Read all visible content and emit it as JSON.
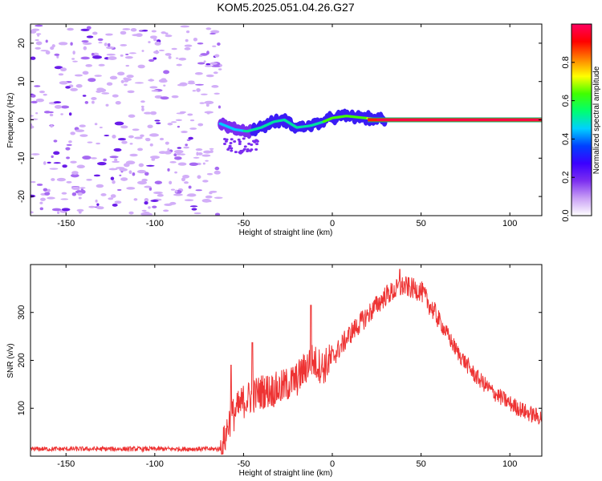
{
  "title": "KOM5.2025.051.04.26.G27",
  "chart_data": [
    {
      "type": "heatmap",
      "name": "spectrogram",
      "xlabel": "Height of straight line (km)",
      "ylabel": "Frequency (Hz)",
      "xlim": [
        -170,
        118
      ],
      "ylim": [
        -25,
        25
      ],
      "xticks": [
        -150,
        -100,
        -50,
        0,
        50,
        100
      ],
      "yticks": [
        -20,
        -10,
        0,
        10,
        20
      ],
      "signal_onset_km": -63,
      "signal_track": [
        {
          "x": -63,
          "y": -1.0
        },
        {
          "x": -55,
          "y": -2.5
        },
        {
          "x": -48,
          "y": -3.0
        },
        {
          "x": -40,
          "y": -2.0
        },
        {
          "x": -33,
          "y": -0.5
        },
        {
          "x": -27,
          "y": 0.0
        },
        {
          "x": -20,
          "y": -2.0
        },
        {
          "x": -12,
          "y": -1.5
        },
        {
          "x": -5,
          "y": -0.5
        },
        {
          "x": 0,
          "y": 0.5
        },
        {
          "x": 8,
          "y": 1.0
        },
        {
          "x": 18,
          "y": 0.5
        },
        {
          "x": 30,
          "y": 0.0
        },
        {
          "x": 118,
          "y": 0.0
        }
      ],
      "colorbar": {
        "label": "Normalized spectral amplitude",
        "range": [
          0,
          1
        ],
        "ticks": [
          0.0,
          0.2,
          0.4,
          0.6,
          0.8
        ],
        "colors": [
          "#ffffff",
          "#c9a0f5",
          "#7c2ff0",
          "#3b00ff",
          "#0040ff",
          "#00d0ff",
          "#00ff70",
          "#40ff00",
          "#ffff00",
          "#ff8000",
          "#ff0000",
          "#ff0060"
        ]
      }
    },
    {
      "type": "line",
      "name": "snr",
      "xlabel": "Height of straight line (km)",
      "ylabel": "SNR (v/v)",
      "xlim": [
        -170,
        118
      ],
      "ylim": [
        0,
        400
      ],
      "xticks": [
        -150,
        -100,
        -50,
        0,
        50,
        100
      ],
      "yticks": [
        100,
        200,
        300
      ],
      "color": "#ee3333",
      "envelope_x": [
        -170,
        -62,
        -58,
        -50,
        -40,
        -30,
        -20,
        -12,
        -5,
        0,
        10,
        20,
        30,
        40,
        50,
        60,
        70,
        80,
        90,
        100,
        110,
        118
      ],
      "envelope_y": [
        15,
        15,
        75,
        115,
        135,
        140,
        160,
        200,
        185,
        205,
        255,
        295,
        335,
        355,
        345,
        285,
        220,
        170,
        135,
        110,
        90,
        80
      ],
      "peaks": [
        {
          "x": -57,
          "y": 190
        },
        {
          "x": -45,
          "y": 237
        },
        {
          "x": -12,
          "y": 315
        },
        {
          "x": 38,
          "y": 390
        }
      ]
    }
  ]
}
